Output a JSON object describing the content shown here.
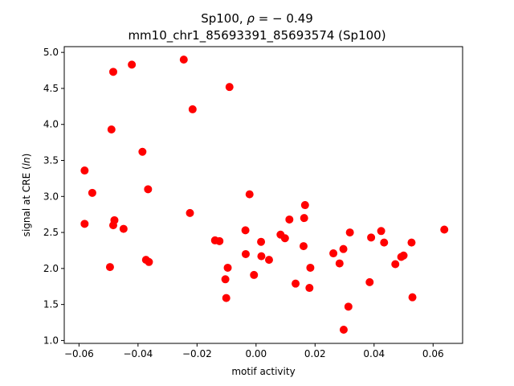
{
  "chart_data": {
    "type": "scatter",
    "title_line1": "Sp100, ρ = − 0.49",
    "title_line2": "mm10_chr1_85693391_85693574 (Sp100)",
    "xlabel": "motif activity",
    "ylabel": "signal at CRE (ln)",
    "xlim": [
      -0.065,
      0.07
    ],
    "ylim": [
      0.96,
      5.08
    ],
    "xticks": [
      -0.06,
      -0.04,
      -0.02,
      0.0,
      0.02,
      0.04,
      0.06
    ],
    "xtick_labels": [
      "−0.06",
      "−0.04",
      "−0.02",
      "0.00",
      "0.02",
      "0.04",
      "0.06"
    ],
    "yticks": [
      1.0,
      1.5,
      2.0,
      2.5,
      3.0,
      3.5,
      4.0,
      4.5,
      5.0
    ],
    "ytick_labels": [
      "1.0",
      "1.5",
      "2.0",
      "2.5",
      "3.0",
      "3.5",
      "4.0",
      "4.5",
      "5.0"
    ],
    "marker_color": "#ff0000",
    "points": [
      {
        "x": -0.0581,
        "y": 3.36
      },
      {
        "x": -0.0581,
        "y": 2.62
      },
      {
        "x": -0.0555,
        "y": 3.05
      },
      {
        "x": -0.0495,
        "y": 2.02
      },
      {
        "x": -0.049,
        "y": 3.93
      },
      {
        "x": -0.0484,
        "y": 4.73
      },
      {
        "x": -0.0484,
        "y": 2.6
      },
      {
        "x": -0.048,
        "y": 2.67
      },
      {
        "x": -0.0449,
        "y": 2.55
      },
      {
        "x": -0.0421,
        "y": 4.83
      },
      {
        "x": -0.0385,
        "y": 3.62
      },
      {
        "x": -0.0373,
        "y": 2.12
      },
      {
        "x": -0.0366,
        "y": 3.1
      },
      {
        "x": -0.0363,
        "y": 2.09
      },
      {
        "x": -0.0245,
        "y": 4.9
      },
      {
        "x": -0.0224,
        "y": 2.77
      },
      {
        "x": -0.0215,
        "y": 4.21
      },
      {
        "x": -0.0139,
        "y": 2.39
      },
      {
        "x": -0.0124,
        "y": 2.38
      },
      {
        "x": -0.0104,
        "y": 1.85
      },
      {
        "x": -0.0101,
        "y": 1.59
      },
      {
        "x": -0.0096,
        "y": 2.01
      },
      {
        "x": -0.009,
        "y": 4.52
      },
      {
        "x": -0.0036,
        "y": 2.53
      },
      {
        "x": -0.0035,
        "y": 2.2
      },
      {
        "x": -0.0022,
        "y": 3.03
      },
      {
        "x": -0.0007,
        "y": 1.91
      },
      {
        "x": 0.0017,
        "y": 2.37
      },
      {
        "x": 0.0018,
        "y": 2.17
      },
      {
        "x": 0.0044,
        "y": 2.12
      },
      {
        "x": 0.0083,
        "y": 2.47
      },
      {
        "x": 0.0098,
        "y": 2.42
      },
      {
        "x": 0.0113,
        "y": 2.68
      },
      {
        "x": 0.0134,
        "y": 1.79
      },
      {
        "x": 0.0161,
        "y": 2.31
      },
      {
        "x": 0.0163,
        "y": 2.7
      },
      {
        "x": 0.0166,
        "y": 2.88
      },
      {
        "x": 0.0181,
        "y": 1.73
      },
      {
        "x": 0.0184,
        "y": 2.01
      },
      {
        "x": 0.0262,
        "y": 2.21
      },
      {
        "x": 0.0283,
        "y": 2.07
      },
      {
        "x": 0.0296,
        "y": 2.27
      },
      {
        "x": 0.0297,
        "y": 1.15
      },
      {
        "x": 0.0313,
        "y": 1.47
      },
      {
        "x": 0.0318,
        "y": 2.5
      },
      {
        "x": 0.0385,
        "y": 1.81
      },
      {
        "x": 0.039,
        "y": 2.43
      },
      {
        "x": 0.0424,
        "y": 2.52
      },
      {
        "x": 0.0434,
        "y": 2.36
      },
      {
        "x": 0.0472,
        "y": 2.06
      },
      {
        "x": 0.0492,
        "y": 2.16
      },
      {
        "x": 0.05,
        "y": 2.18
      },
      {
        "x": 0.0527,
        "y": 2.36
      },
      {
        "x": 0.053,
        "y": 1.6
      },
      {
        "x": 0.0638,
        "y": 2.54
      }
    ]
  }
}
